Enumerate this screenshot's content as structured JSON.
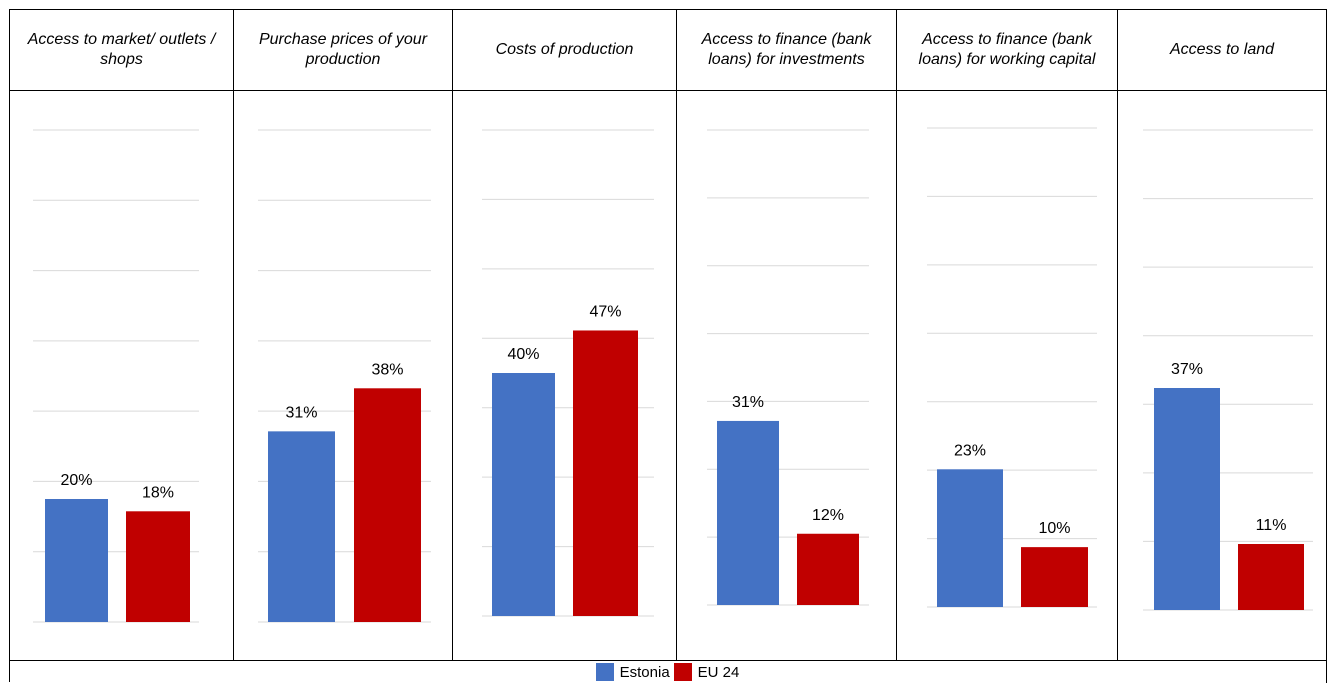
{
  "chart_data": {
    "type": "bar",
    "categories": [
      "Access to market/ outlets / shops",
      "Purchase prices of your production",
      "Costs of production",
      "Access to finance (bank loans) for investments",
      "Access to finance (bank loans) for working capital",
      "Access to land"
    ],
    "series": [
      {
        "name": "Estonia",
        "values": [
          20,
          31,
          40,
          31,
          23,
          37
        ],
        "labels": [
          "20%",
          "31%",
          "40%",
          "31%",
          "23%",
          "37%"
        ]
      },
      {
        "name": "EU 24",
        "values": [
          18,
          38,
          47,
          12,
          10,
          11
        ],
        "labels": [
          "18%",
          "38%",
          "47%",
          "12%",
          "10%",
          "11%"
        ]
      }
    ],
    "ylabel": "",
    "xlabel": "",
    "grid": true,
    "legend_position": "bottom"
  },
  "headers": [
    "Access to market/ outlets / shops",
    "Purchase prices of your production",
    "Costs of production",
    "Access to finance (bank loans) for investments",
    "Access to finance (bank loans) for working capital",
    "Access to land"
  ],
  "legend": {
    "estonia": "Estonia",
    "eu": "EU 24"
  },
  "colors": {
    "estonia": "#4472c4",
    "eu": "#c00000",
    "grid": "#d9d9d9"
  }
}
